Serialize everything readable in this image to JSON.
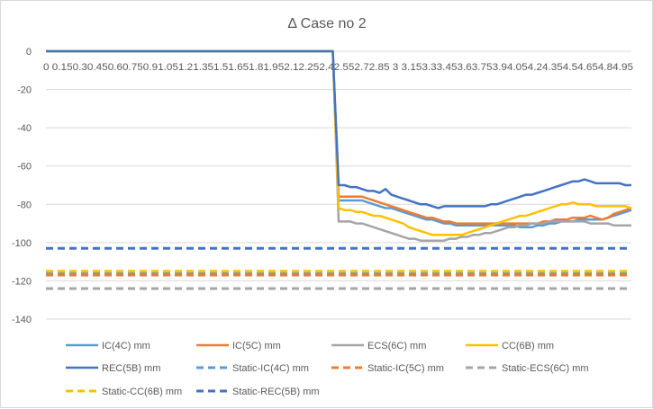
{
  "chart_data": {
    "type": "line",
    "title": "Δ Case no 2",
    "xlabel": "",
    "ylabel": "",
    "ylim": [
      -140,
      0
    ],
    "ytick_step": 20,
    "x_tick_labels": [
      "0",
      "0.15",
      "0.3",
      "0.45",
      "0.6",
      "0.75",
      "0.9",
      "1.05",
      "1.2",
      "1.35",
      "1.5",
      "1.65",
      "1.8",
      "1.95",
      "2.1",
      "2.25",
      "2.4",
      "2.55",
      "2.7",
      "2.85",
      "3",
      "3.15",
      "3.3",
      "3.45",
      "3.6",
      "3.75",
      "3.9",
      "4.05",
      "4.2",
      "4.35",
      "4.5",
      "4.65",
      "4.8",
      "4.95"
    ],
    "x_tick_text": "0 0.150.30.450.60.750.91.051.21.351.51.651.81.952.12.252.42.552.72.85  3  3.153.33.453.63.753.94.054.24.354.54.654.84.95",
    "xlim": [
      0,
      5.0
    ],
    "x": [
      0,
      0.05,
      0.1,
      0.15,
      0.2,
      0.25,
      0.3,
      0.35,
      0.4,
      0.45,
      0.5,
      0.55,
      0.6,
      0.65,
      0.7,
      0.75,
      0.8,
      0.85,
      0.9,
      0.95,
      1,
      1.05,
      1.1,
      1.15,
      1.2,
      1.25,
      1.3,
      1.35,
      1.4,
      1.45,
      1.5,
      1.55,
      1.6,
      1.65,
      1.7,
      1.75,
      1.8,
      1.85,
      1.9,
      1.95,
      2,
      2.05,
      2.1,
      2.15,
      2.2,
      2.25,
      2.3,
      2.35,
      2.4,
      2.45,
      2.5,
      2.55,
      2.6,
      2.65,
      2.7,
      2.75,
      2.8,
      2.85,
      2.9,
      2.95,
      3,
      3.05,
      3.1,
      3.15,
      3.2,
      3.25,
      3.3,
      3.35,
      3.4,
      3.45,
      3.5,
      3.55,
      3.6,
      3.65,
      3.7,
      3.75,
      3.8,
      3.85,
      3.9,
      3.95,
      4,
      4.05,
      4.1,
      4.15,
      4.2,
      4.25,
      4.3,
      4.35,
      4.4,
      4.45,
      4.5,
      4.55,
      4.6,
      4.65,
      4.7,
      4.75,
      4.8,
      4.85,
      4.9,
      4.95,
      5
    ],
    "series": [
      {
        "name": "IC(4C) mm",
        "color": "#5B9BD5",
        "dash": false,
        "values": [
          0,
          0,
          0,
          0,
          0,
          0,
          0,
          0,
          0,
          0,
          0,
          0,
          0,
          0,
          0,
          0,
          0,
          0,
          0,
          0,
          0,
          0,
          0,
          0,
          0,
          0,
          0,
          0,
          0,
          0,
          0,
          0,
          0,
          0,
          0,
          0,
          0,
          0,
          0,
          0,
          0,
          0,
          0,
          0,
          0,
          0,
          0,
          0,
          0,
          0,
          -78,
          -78,
          -78,
          -78,
          -78,
          -79,
          -80,
          -81,
          -82,
          -82,
          -83,
          -84,
          -85,
          -86,
          -87,
          -88,
          -88,
          -89,
          -90,
          -90,
          -91,
          -91,
          -91,
          -91,
          -91,
          -91,
          -91,
          -91,
          -91,
          -91,
          -91,
          -92,
          -92,
          -92,
          -91,
          -91,
          -90,
          -90,
          -89,
          -89,
          -89,
          -88,
          -88,
          -88,
          -88,
          -88,
          -87,
          -86,
          -85,
          -84,
          -83
        ]
      },
      {
        "name": "IC(5C) mm",
        "color": "#ED7D31",
        "dash": false,
        "values": [
          0,
          0,
          0,
          0,
          0,
          0,
          0,
          0,
          0,
          0,
          0,
          0,
          0,
          0,
          0,
          0,
          0,
          0,
          0,
          0,
          0,
          0,
          0,
          0,
          0,
          0,
          0,
          0,
          0,
          0,
          0,
          0,
          0,
          0,
          0,
          0,
          0,
          0,
          0,
          0,
          0,
          0,
          0,
          0,
          0,
          0,
          0,
          0,
          0,
          0,
          -76,
          -76,
          -76,
          -76,
          -76,
          -77,
          -78,
          -79,
          -80,
          -81,
          -82,
          -83,
          -84,
          -85,
          -86,
          -87,
          -87,
          -88,
          -89,
          -89,
          -90,
          -90,
          -90,
          -90,
          -90,
          -90,
          -90,
          -90,
          -90,
          -90,
          -90,
          -90,
          -90,
          -90,
          -90,
          -89,
          -89,
          -88,
          -88,
          -88,
          -87,
          -87,
          -87,
          -86,
          -87,
          -88,
          -87,
          -85,
          -84,
          -83,
          -82
        ]
      },
      {
        "name": "ECS(6C) mm",
        "color": "#A5A5A5",
        "dash": false,
        "values": [
          0,
          0,
          0,
          0,
          0,
          0,
          0,
          0,
          0,
          0,
          0,
          0,
          0,
          0,
          0,
          0,
          0,
          0,
          0,
          0,
          0,
          0,
          0,
          0,
          0,
          0,
          0,
          0,
          0,
          0,
          0,
          0,
          0,
          0,
          0,
          0,
          0,
          0,
          0,
          0,
          0,
          0,
          0,
          0,
          0,
          0,
          0,
          0,
          0,
          0,
          -89,
          -89,
          -89,
          -90,
          -90,
          -91,
          -92,
          -93,
          -94,
          -95,
          -96,
          -97,
          -98,
          -98,
          -99,
          -99,
          -99,
          -99,
          -99,
          -98,
          -98,
          -97,
          -97,
          -96,
          -96,
          -95,
          -95,
          -94,
          -93,
          -92,
          -92,
          -91,
          -91,
          -90,
          -90,
          -90,
          -89,
          -89,
          -89,
          -89,
          -89,
          -89,
          -89,
          -90,
          -90,
          -90,
          -90,
          -91,
          -91,
          -91,
          -91
        ]
      },
      {
        "name": "CC(6B) mm",
        "color": "#FFC000",
        "dash": false,
        "values": [
          0,
          0,
          0,
          0,
          0,
          0,
          0,
          0,
          0,
          0,
          0,
          0,
          0,
          0,
          0,
          0,
          0,
          0,
          0,
          0,
          0,
          0,
          0,
          0,
          0,
          0,
          0,
          0,
          0,
          0,
          0,
          0,
          0,
          0,
          0,
          0,
          0,
          0,
          0,
          0,
          0,
          0,
          0,
          0,
          0,
          0,
          0,
          0,
          0,
          0,
          -82,
          -83,
          -83,
          -84,
          -84,
          -85,
          -86,
          -86,
          -87,
          -88,
          -89,
          -90,
          -92,
          -93,
          -94,
          -95,
          -96,
          -96,
          -96,
          -96,
          -96,
          -96,
          -95,
          -94,
          -93,
          -92,
          -91,
          -90,
          -89,
          -88,
          -87,
          -86,
          -86,
          -85,
          -84,
          -83,
          -82,
          -81,
          -80,
          -80,
          -79,
          -80,
          -80,
          -80,
          -81,
          -81,
          -81,
          -81,
          -81,
          -81,
          -82
        ]
      },
      {
        "name": "REC(5B) mm",
        "color": "#4472C4",
        "dash": false,
        "values": [
          0,
          0,
          0,
          0,
          0,
          0,
          0,
          0,
          0,
          0,
          0,
          0,
          0,
          0,
          0,
          0,
          0,
          0,
          0,
          0,
          0,
          0,
          0,
          0,
          0,
          0,
          0,
          0,
          0,
          0,
          0,
          0,
          0,
          0,
          0,
          0,
          0,
          0,
          0,
          0,
          0,
          0,
          0,
          0,
          0,
          0,
          0,
          0,
          0,
          0,
          -70,
          -70,
          -71,
          -71,
          -72,
          -73,
          -73,
          -74,
          -72,
          -75,
          -76,
          -77,
          -78,
          -79,
          -80,
          -80,
          -81,
          -82,
          -81,
          -81,
          -81,
          -81,
          -81,
          -81,
          -81,
          -81,
          -80,
          -80,
          -79,
          -78,
          -77,
          -76,
          -75,
          -75,
          -74,
          -73,
          -72,
          -71,
          -70,
          -69,
          -68,
          -68,
          -67,
          -68,
          -69,
          -69,
          -69,
          -69,
          -69,
          -70,
          -70
        ]
      },
      {
        "name": "Static-IC(4C) mm",
        "color": "#5B9BD5",
        "dash": true,
        "constant": -116
      },
      {
        "name": "Static-IC(5C) mm",
        "color": "#ED7D31",
        "dash": true,
        "constant": -117
      },
      {
        "name": "Static-ECS(6C) mm",
        "color": "#A5A5A5",
        "dash": true,
        "constant": -124
      },
      {
        "name": "Static-CC(6B) mm",
        "color": "#FFC000",
        "dash": true,
        "constant": -115
      },
      {
        "name": "Static-REC(5B) mm",
        "color": "#4472C4",
        "dash": true,
        "constant": -103
      }
    ],
    "legend_position": "bottom",
    "grid": true
  }
}
